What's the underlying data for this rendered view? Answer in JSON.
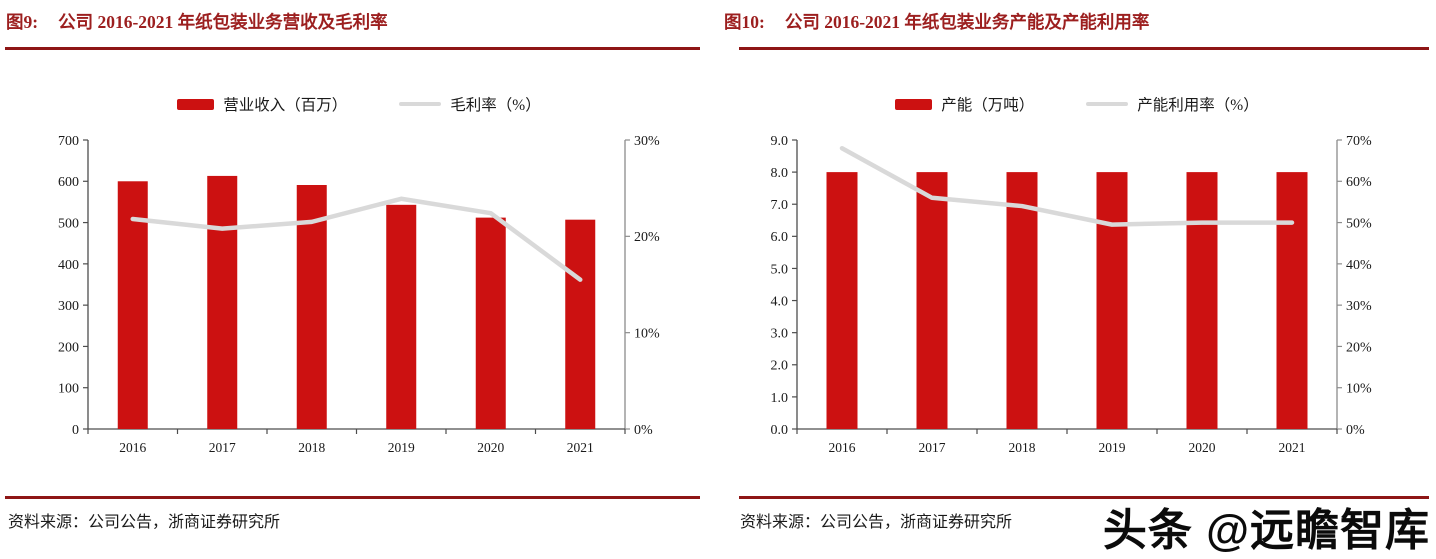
{
  "watermark": {
    "text": "头条 @远瞻智库"
  },
  "colors": {
    "bar": "#cc1111",
    "line": "#d9d9d9",
    "title": "#9c1f1f",
    "rule": "#8e1616",
    "axis_primary": "#4d4d4d",
    "axis_secondary": "#8c8c8c",
    "text": "#1a1a1a"
  },
  "figures": [
    {
      "label": "图9:",
      "title": "公司 2016-2021 年纸包装业务营收及毛利率",
      "source": "资料来源：公司公告，浙商证券研究所",
      "legend": [
        {
          "type": "bar",
          "label": "营业收入（百万）"
        },
        {
          "type": "line",
          "label": "毛利率（%）"
        }
      ],
      "chart_data": {
        "type": "bar",
        "subtype": "bar+line combo, dual axis",
        "categories": [
          "2016",
          "2017",
          "2018",
          "2019",
          "2020",
          "2021"
        ],
        "series": [
          {
            "name": "营业收入（百万）",
            "kind": "bar",
            "axis": "left",
            "values": [
              600,
              613,
              591,
              543,
              512,
              507
            ]
          },
          {
            "name": "毛利率（%）",
            "kind": "line",
            "axis": "right",
            "values": [
              21.8,
              20.8,
              21.5,
              23.9,
              22.4,
              15.5
            ]
          }
        ],
        "left_axis": {
          "min": 0,
          "max": 700,
          "step": 100,
          "decimals": 0,
          "suffix": ""
        },
        "right_axis": {
          "min": 0,
          "max": 30,
          "step": 10,
          "decimals": 0,
          "suffix": "%"
        },
        "grid": false,
        "legend_position": "top"
      }
    },
    {
      "label": "图10:",
      "title": "公司 2016-2021 年纸包装业务产能及产能利用率",
      "source": "资料来源：公司公告，浙商证券研究所",
      "legend": [
        {
          "type": "bar",
          "label": "产能（万吨）"
        },
        {
          "type": "line",
          "label": "产能利用率（%）"
        }
      ],
      "chart_data": {
        "type": "bar",
        "subtype": "bar+line combo, dual axis",
        "categories": [
          "2016",
          "2017",
          "2018",
          "2019",
          "2020",
          "2021"
        ],
        "series": [
          {
            "name": "产能（万吨）",
            "kind": "bar",
            "axis": "left",
            "values": [
              8.0,
              8.0,
              8.0,
              8.0,
              8.0,
              8.0
            ]
          },
          {
            "name": "产能利用率（%）",
            "kind": "line",
            "axis": "right",
            "values": [
              68,
              56,
              54,
              49.5,
              50,
              50
            ]
          }
        ],
        "left_axis": {
          "min": 0,
          "max": 9,
          "step": 1,
          "decimals": 1,
          "suffix": ""
        },
        "right_axis": {
          "min": 0,
          "max": 70,
          "step": 10,
          "decimals": 0,
          "suffix": "%"
        },
        "grid": false,
        "legend_position": "top"
      }
    }
  ]
}
